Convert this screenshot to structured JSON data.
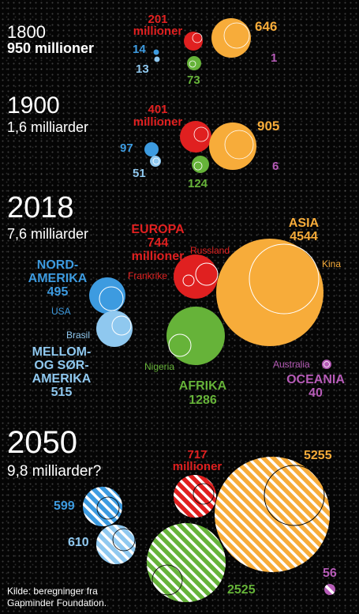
{
  "colors": {
    "europe": "#e02020",
    "asia": "#f7ac3a",
    "north_america": "#3d9be0",
    "latin_america": "#8fc8ef",
    "africa": "#66b339",
    "oceania": "#b65bb7"
  },
  "sections": [
    {
      "year": "1800",
      "total": "950 millioner",
      "europe": "201",
      "europe_unit": "millioner",
      "asia": "646",
      "north_america": "14",
      "latin_america": "13",
      "africa": "73",
      "oceania": "1"
    },
    {
      "year": "1900",
      "total": "1,6 milliarder",
      "europe": "401",
      "europe_unit": "millioner",
      "asia": "905",
      "north_america": "97",
      "latin_america": "51",
      "africa": "124",
      "oceania": "6"
    },
    {
      "year": "2018",
      "total": "7,6 milliarder",
      "europe_name": "EUROPA",
      "europe": "744",
      "europe_unit": "millioner",
      "asia_name": "ASIA",
      "asia": "4544",
      "north_america_name_1": "NORD-",
      "north_america_name_2": "AMERIKA",
      "north_america": "495",
      "latin_america_name_1": "MELLOM-",
      "latin_america_name_2": "OG SØR-",
      "latin_america_name_3": "AMERIKA",
      "latin_america": "515",
      "africa_name": "AFRIKA",
      "africa": "1286",
      "oceania_name": "OCEANIA",
      "oceania": "40",
      "country_russia": "Russland",
      "country_france": "Frankrike",
      "country_china": "Kina",
      "country_usa": "USA",
      "country_brazil": "Brasil",
      "country_nigeria": "Nigeria",
      "country_australia": "Australia"
    },
    {
      "year": "2050",
      "total": "9,8 milliarder?",
      "europe": "717",
      "europe_unit": "millioner",
      "asia": "5255",
      "north_america": "599",
      "latin_america": "610",
      "africa": "2525",
      "oceania": "56"
    }
  ],
  "source_line_1": "Kilde: beregninger fra",
  "source_line_2": "Gapminder Foundation."
}
